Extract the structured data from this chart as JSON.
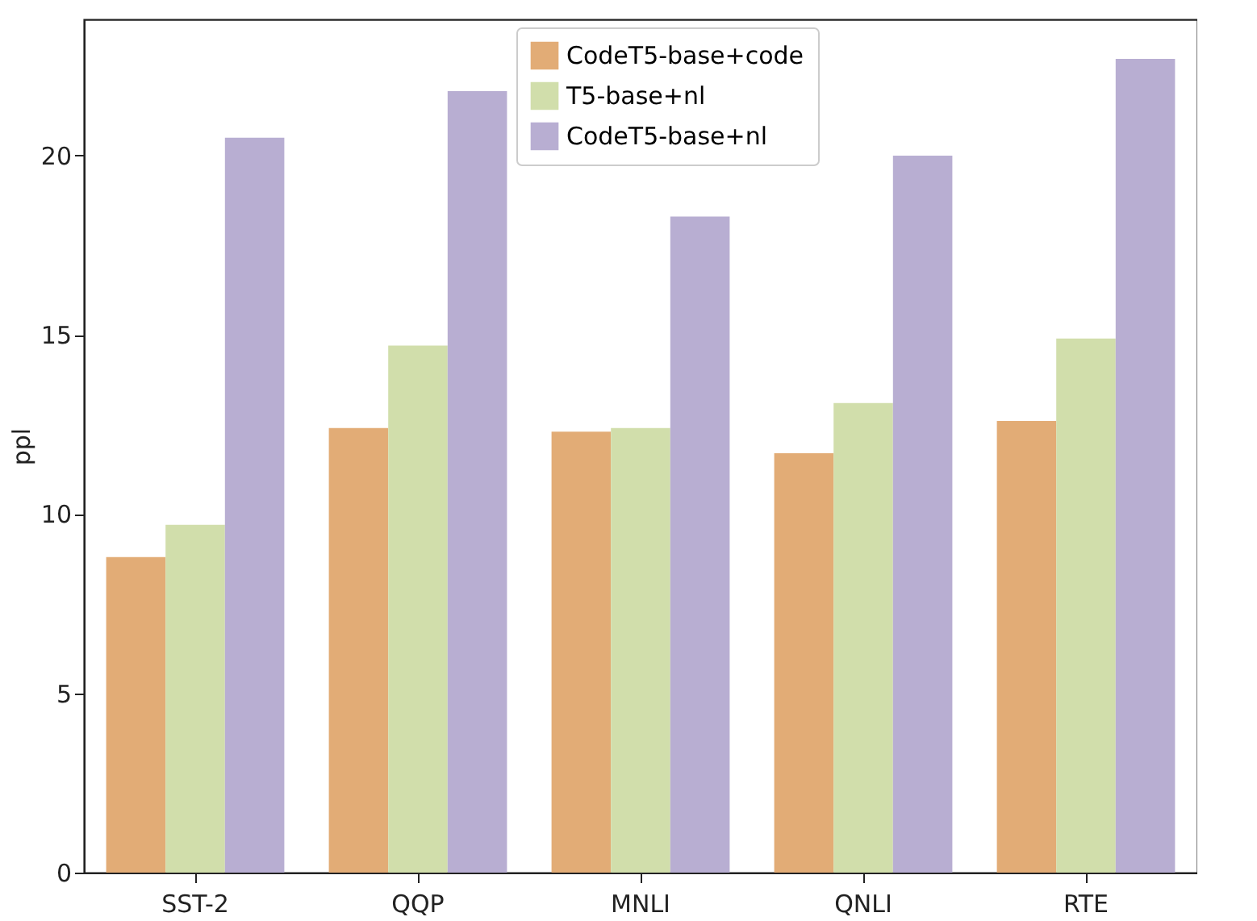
{
  "chart_data": {
    "type": "bar",
    "ylabel": "ppl",
    "categories": [
      "SST-2",
      "QQP",
      "MNLI",
      "QNLI",
      "RTE"
    ],
    "series": [
      {
        "name": "CodeT5-base+code",
        "color": "#e2ac76",
        "values": [
          8.8,
          12.4,
          12.3,
          11.7,
          12.6
        ]
      },
      {
        "name": "T5-base+nl",
        "color": "#d1deab",
        "values": [
          9.7,
          14.7,
          12.4,
          13.1,
          14.9
        ]
      },
      {
        "name": "CodeT5-base+nl",
        "color": "#b8aed2",
        "values": [
          20.5,
          21.8,
          18.3,
          20.0,
          22.7
        ]
      }
    ],
    "ylim": [
      0,
      23.8
    ],
    "yticks": [
      0,
      5,
      10,
      15,
      20
    ],
    "grid": false,
    "legend": "top"
  }
}
